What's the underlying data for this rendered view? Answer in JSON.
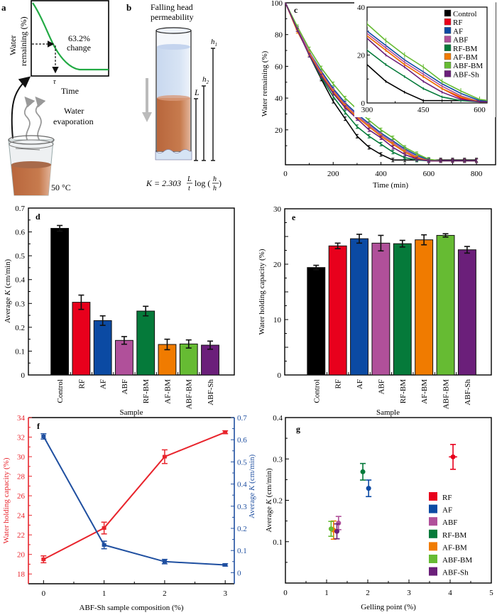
{
  "panel_a": {
    "label": "a",
    "ylabel_line1": "Water",
    "ylabel_line2": "remaining (%)",
    "xlabel": "Time",
    "annotation_line1": "63.2%",
    "annotation_line2": "change",
    "tau": "τ",
    "evap_line1": "Water",
    "evap_line2": "evaporation",
    "temperature": "50 °C",
    "curve_color": "#22aa44"
  },
  "panel_b": {
    "label": "b",
    "title_line1": "Falling head",
    "title_line2": "permeability",
    "L": "L",
    "h1": "h",
    "h1_sub": "1",
    "h2": "h",
    "h2_sub": "2",
    "formula_K": "K = 2.303",
    "formula_frac_num": "L",
    "formula_frac_den": "t",
    "formula_log": "log (",
    "formula_h1": "h",
    "formula_h2": "h",
    "formula_close": ")"
  },
  "chart_data": [
    {
      "id": "c",
      "type": "line",
      "panel_label": "c",
      "title": "",
      "xlabel": "Time (min)",
      "ylabel": "Water remaining (%)",
      "xlim": [
        0,
        880
      ],
      "ylim": [
        -2,
        100
      ],
      "xticks": [
        0,
        200,
        400,
        600,
        800
      ],
      "yticks": [
        20,
        40,
        60,
        80,
        100
      ],
      "x": [
        0,
        50,
        100,
        150,
        200,
        250,
        300,
        350,
        400,
        450,
        500,
        550,
        600,
        650,
        700,
        750,
        800
      ],
      "series": [
        {
          "name": "Control",
          "color": "#000000",
          "values": [
            100,
            84,
            67,
            52,
            38,
            27,
            16,
            9,
            4.5,
            1,
            1,
            1,
            1,
            1,
            1,
            1,
            1
          ]
        },
        {
          "name": "RF",
          "color": "#e8001c",
          "values": [
            100,
            83,
            68,
            55,
            44,
            35,
            28,
            22,
            16,
            11,
            6,
            2,
            0.5,
            0.5,
            0.5,
            0.5,
            0.5
          ]
        },
        {
          "name": "AF",
          "color": "#0b4aa3",
          "values": [
            100,
            84,
            69,
            57,
            46,
            37,
            30,
            24,
            18,
            13,
            8,
            4,
            1,
            0.5,
            0.5,
            0.5,
            0.5
          ]
        },
        {
          "name": "ABF",
          "color": "#b0509a",
          "values": [
            100,
            84,
            69,
            56,
            45,
            36,
            29,
            23,
            17,
            12,
            7,
            3,
            0.5,
            0.5,
            0.5,
            0.5,
            0.5
          ]
        },
        {
          "name": "RF-BM",
          "color": "#057a3a",
          "values": [
            100,
            83,
            67,
            53,
            41,
            31,
            22,
            16,
            11,
            6,
            2.5,
            1,
            0.5,
            0.5,
            0.5,
            0.5,
            0.5
          ]
        },
        {
          "name": "AF-BM",
          "color": "#f07b00",
          "values": [
            100,
            82,
            68,
            55,
            44,
            35,
            28,
            22,
            16,
            11,
            6,
            2.5,
            0.5,
            0.5,
            0.5,
            0.5,
            0.5
          ]
        },
        {
          "name": "ABF-BM",
          "color": "#66bb33",
          "values": [
            100,
            85,
            71,
            59,
            49,
            40,
            33,
            26,
            20,
            15,
            9,
            5,
            1.5,
            0.5,
            0.5,
            0.5,
            0.5
          ]
        },
        {
          "name": "ABF-Sh",
          "color": "#6b1f7a",
          "values": [
            100,
            83,
            67,
            54,
            43,
            34,
            27,
            20,
            15,
            9,
            4.5,
            1.5,
            0.5,
            0.5,
            0.5,
            0.5,
            0.5
          ]
        }
      ],
      "inset": {
        "xlim": [
          300,
          620
        ],
        "ylim": [
          0,
          40
        ],
        "xticks": [
          300,
          450,
          600
        ],
        "yticks": [
          0,
          20,
          40
        ]
      },
      "legend": "top-right (inside inset)"
    },
    {
      "id": "d",
      "type": "bar",
      "panel_label": "d",
      "xlabel": "Sample",
      "ylabel": "Average K (cm/min)",
      "ylim": [
        0,
        0.7
      ],
      "yticks": [
        0,
        0.1,
        0.2,
        0.3,
        0.4,
        0.5,
        0.6,
        0.7
      ],
      "ytick_labels": [
        "0",
        "0.1",
        "0.2",
        "0.3",
        "0.4",
        "0.5",
        "0.6",
        "0.7"
      ],
      "categories": [
        "Control",
        "RF",
        "AF",
        "ABF",
        "RF-BM",
        "AF-BM",
        "ABF-BM",
        "ABF-Sh"
      ],
      "values": [
        0.615,
        0.305,
        0.228,
        0.145,
        0.268,
        0.128,
        0.13,
        0.125
      ],
      "errors": [
        0.012,
        0.03,
        0.02,
        0.016,
        0.02,
        0.022,
        0.017,
        0.017
      ],
      "colors": [
        "#000000",
        "#e8001c",
        "#0b4aa3",
        "#b0509a",
        "#057a3a",
        "#f07b00",
        "#66bb33",
        "#6b1f7a"
      ]
    },
    {
      "id": "e",
      "type": "bar",
      "panel_label": "e",
      "xlabel": "Sample",
      "ylabel": "Water holding capacity (%)",
      "ylim": [
        0,
        30
      ],
      "yticks": [
        0,
        5,
        10,
        15,
        20,
        25,
        30
      ],
      "ytick_labels": [
        "0",
        "",
        "10",
        "",
        "20",
        "",
        "30"
      ],
      "categories": [
        "Control",
        "RF",
        "AF",
        "ABF",
        "RF-BM",
        "AF-BM",
        "ABF-BM",
        "ABF-Sh"
      ],
      "values": [
        19.4,
        23.3,
        24.6,
        23.8,
        23.7,
        24.4,
        25.2,
        22.6
      ],
      "errors": [
        0.4,
        0.5,
        0.8,
        1.4,
        0.6,
        0.9,
        0.3,
        0.6
      ],
      "colors": [
        "#000000",
        "#e8001c",
        "#0b4aa3",
        "#b0509a",
        "#057a3a",
        "#f07b00",
        "#66bb33",
        "#6b1f7a"
      ]
    },
    {
      "id": "f",
      "type": "line",
      "panel_label": "f",
      "xlabel": "ABF-Sh sample composition (%)",
      "ylabel_left": "Water holding capacity (%)",
      "ylabel_right": "Average K (cm/min)",
      "x": [
        0,
        1,
        2,
        3
      ],
      "xticks": [
        0,
        1,
        2,
        3
      ],
      "xlim": [
        -0.25,
        3.15
      ],
      "ylim_left": [
        17,
        34
      ],
      "yticks_left": [
        18,
        20,
        22,
        24,
        26,
        28,
        30,
        32,
        34
      ],
      "ylim_right": [
        -0.05,
        0.7
      ],
      "yticks_right": [
        0,
        0.1,
        0.2,
        0.3,
        0.4,
        0.5,
        0.6,
        0.7
      ],
      "series": [
        {
          "name": "Water holding capacity",
          "axis": "left",
          "color": "#e8242c",
          "values": [
            19.5,
            22.7,
            30.0,
            32.5
          ],
          "errors": [
            0.35,
            0.6,
            0.7,
            0.15
          ]
        },
        {
          "name": "Average K",
          "axis": "right",
          "color": "#1f4fa0",
          "values": [
            0.615,
            0.125,
            0.05,
            0.035
          ],
          "errors": [
            0.012,
            0.017,
            0.01,
            0.005
          ]
        }
      ]
    },
    {
      "id": "g",
      "type": "scatter",
      "panel_label": "g",
      "xlabel": "Gelling point (%)",
      "ylabel": "Average K (cm/min)",
      "xlim": [
        0,
        5
      ],
      "ylim": [
        0,
        0.4
      ],
      "xticks": [
        0,
        1,
        2,
        3,
        4,
        5
      ],
      "yticks": [
        0.1,
        0.2,
        0.3,
        0.4
      ],
      "points": [
        {
          "name": "RF",
          "color": "#e8001c",
          "x": 4.07,
          "y": 0.305,
          "yerr": 0.03,
          "xerr": 0.1
        },
        {
          "name": "AF",
          "color": "#0b4aa3",
          "x": 2.02,
          "y": 0.229,
          "yerr": 0.02,
          "xerr": 0.02
        },
        {
          "name": "ABF",
          "color": "#b0509a",
          "x": 1.29,
          "y": 0.145,
          "yerr": 0.016,
          "xerr": 0.04
        },
        {
          "name": "RF-BM",
          "color": "#057a3a",
          "x": 1.88,
          "y": 0.269,
          "yerr": 0.02,
          "xerr": 0.03
        },
        {
          "name": "AF-BM",
          "color": "#f07b00",
          "x": 1.17,
          "y": 0.128,
          "yerr": 0.022,
          "xerr": 0.03
        },
        {
          "name": "ABF-BM",
          "color": "#66bb33",
          "x": 1.11,
          "y": 0.131,
          "yerr": 0.018,
          "xerr": 0.03
        },
        {
          "name": "ABF-Sh",
          "color": "#6b1f7a",
          "x": 1.25,
          "y": 0.125,
          "yerr": 0.018,
          "xerr": 0.03
        }
      ],
      "legend": "lower-right"
    }
  ]
}
